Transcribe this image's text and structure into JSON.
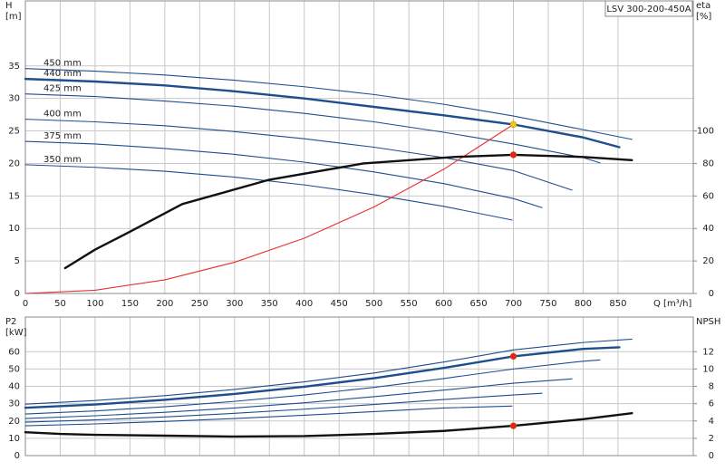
{
  "chart_data": [
    {
      "type": "line",
      "title": "LSV 300-200-450A",
      "xlabel": "Q [m³/h]",
      "ylabel": [
        "H",
        "[m]"
      ],
      "y2label": [
        "eta",
        "[%]"
      ],
      "xlim": [
        0,
        958
      ],
      "xticks": [
        0,
        50,
        100,
        150,
        200,
        250,
        300,
        350,
        400,
        450,
        500,
        550,
        600,
        650,
        700,
        750,
        800,
        850
      ],
      "ylim": [
        0,
        45
      ],
      "yticks": [
        0,
        5,
        10,
        15,
        20,
        25,
        30,
        35
      ],
      "y2lim": [
        0,
        180
      ],
      "y2ticks": [
        0,
        20,
        40,
        60,
        80,
        100
      ],
      "grid": true,
      "series": [
        {
          "name": "450 mm",
          "color": "#1f4e8c",
          "x": [
            0,
            100,
            200,
            300,
            400,
            500,
            600,
            700,
            800,
            870
          ],
          "values": [
            34.6,
            34.2,
            33.6,
            32.8,
            31.8,
            30.6,
            29.1,
            27.3,
            25.2,
            23.7
          ]
        },
        {
          "name": "440 mm",
          "color": "#1f4e8c",
          "x": [
            0,
            100,
            200,
            300,
            400,
            500,
            600,
            700,
            800,
            852
          ],
          "values": [
            33.0,
            32.6,
            32.0,
            31.1,
            30.0,
            28.7,
            27.4,
            26.0,
            24.0,
            22.5
          ]
        },
        {
          "name": "425 mm",
          "color": "#1f4e8c",
          "x": [
            0,
            100,
            200,
            300,
            400,
            500,
            600,
            700,
            800,
            824
          ],
          "values": [
            30.7,
            30.3,
            29.6,
            28.8,
            27.7,
            26.4,
            24.8,
            23.0,
            20.9,
            20.1
          ]
        },
        {
          "name": "400 mm",
          "color": "#1f4e8c",
          "x": [
            0,
            100,
            200,
            300,
            400,
            500,
            600,
            700,
            784
          ],
          "values": [
            26.8,
            26.4,
            25.8,
            24.9,
            23.8,
            22.5,
            20.9,
            18.9,
            15.9
          ]
        },
        {
          "name": "375 mm",
          "color": "#1f4e8c",
          "x": [
            0,
            100,
            200,
            300,
            400,
            500,
            600,
            700,
            741
          ],
          "values": [
            23.4,
            23.0,
            22.3,
            21.4,
            20.2,
            18.7,
            16.9,
            14.6,
            13.2
          ]
        },
        {
          "name": "350 mm",
          "color": "#1f4e8c",
          "x": [
            0,
            100,
            200,
            300,
            400,
            500,
            600,
            698
          ],
          "values": [
            19.8,
            19.4,
            18.8,
            17.9,
            16.7,
            15.2,
            13.4,
            11.3
          ]
        },
        {
          "color": "#e83030",
          "x": [
            0,
            100,
            200,
            300,
            400,
            500,
            600,
            700
          ],
          "values": [
            0,
            0.5,
            2.1,
            4.8,
            8.5,
            13.3,
            19.1,
            26.0
          ]
        },
        {
          "color": "#111111",
          "axis": "y2",
          "x": [
            57,
            100,
            150,
            225,
            350,
            485,
            615,
            700,
            800,
            870
          ],
          "values": [
            15.6,
            27,
            38,
            55,
            70,
            80,
            84,
            85.3,
            84,
            82
          ]
        }
      ],
      "points": [
        {
          "x": 700,
          "y": 26.0,
          "color": "#f5c518"
        },
        {
          "x": 700,
          "y": 85.3,
          "axis": "y2",
          "color": "#e82020"
        }
      ]
    },
    {
      "type": "line",
      "ylabel": [
        "P2",
        "[kW]"
      ],
      "y2label": [
        "NPSH"
      ],
      "xlim": [
        0,
        958
      ],
      "ylim": [
        0,
        80
      ],
      "yticks": [
        0,
        10,
        20,
        30,
        40,
        50,
        60
      ],
      "y2lim": [
        0,
        16
      ],
      "y2ticks": [
        0,
        2,
        4,
        6,
        8,
        10,
        12
      ],
      "grid": true,
      "series": [
        {
          "color": "#1f4e8c",
          "x": [
            0,
            100,
            200,
            300,
            400,
            500,
            600,
            700,
            800,
            870
          ],
          "values": [
            29.7,
            31.8,
            34.6,
            38.2,
            42.6,
            47.7,
            54.0,
            61.0,
            65.3,
            67.2
          ]
        },
        {
          "color": "#1f4e8c",
          "x": [
            0,
            100,
            200,
            300,
            400,
            500,
            600,
            700,
            800,
            852
          ],
          "values": [
            27.6,
            29.5,
            32.2,
            35.6,
            39.8,
            44.7,
            50.6,
            57.3,
            61.6,
            62.5
          ]
        },
        {
          "color": "#1f4e8c",
          "x": [
            0,
            100,
            200,
            300,
            400,
            500,
            600,
            700,
            800,
            824
          ],
          "values": [
            24.0,
            25.8,
            28.2,
            31.3,
            35.0,
            39.4,
            44.5,
            50.0,
            54.5,
            55.2
          ]
        },
        {
          "color": "#1f4e8c",
          "x": [
            0,
            100,
            200,
            300,
            400,
            500,
            600,
            700,
            784
          ],
          "values": [
            21.4,
            23.0,
            25.0,
            27.5,
            30.5,
            34.0,
            37.8,
            41.8,
            44.3
          ]
        },
        {
          "color": "#1f4e8c",
          "x": [
            0,
            100,
            200,
            300,
            400,
            500,
            600,
            700,
            741
          ],
          "values": [
            19.3,
            20.6,
            22.3,
            24.4,
            26.8,
            29.5,
            32.4,
            35.0,
            36.0
          ]
        },
        {
          "color": "#1f4e8c",
          "x": [
            0,
            100,
            200,
            300,
            400,
            500,
            600,
            698
          ],
          "values": [
            17.2,
            18.3,
            19.7,
            21.4,
            23.3,
            25.4,
            27.5,
            28.6
          ]
        },
        {
          "color": "#111111",
          "axis": "y2",
          "x": [
            0,
            50,
            100,
            200,
            300,
            400,
            500,
            600,
            700,
            800,
            870
          ],
          "values": [
            2.7,
            2.5,
            2.4,
            2.3,
            2.2,
            2.25,
            2.5,
            2.85,
            3.44,
            4.2,
            4.9
          ]
        }
      ],
      "points": [
        {
          "x": 700,
          "y": 57.3,
          "color": "#e82020"
        },
        {
          "x": 700,
          "y": 3.44,
          "axis": "y2",
          "color": "#e82020"
        }
      ]
    }
  ]
}
